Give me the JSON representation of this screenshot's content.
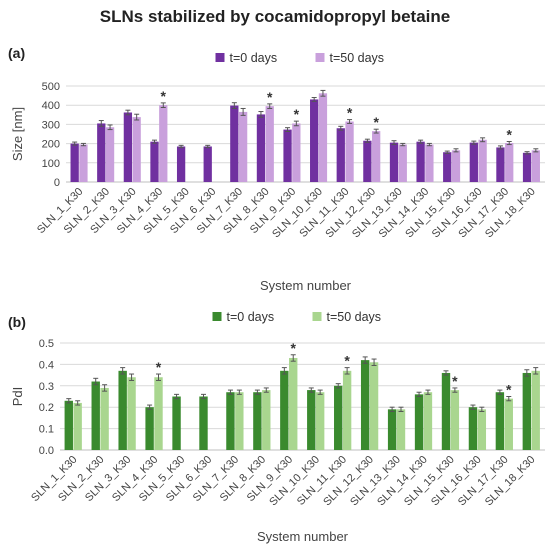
{
  "title": "SLNs stabilized by cocamidopropyl betaine",
  "chart_data": [
    {
      "type": "bar",
      "panel_label": "(a)",
      "categories": [
        "SLN_1_K30",
        "SLN_2_K30",
        "SLN_3_K30",
        "SLN_4_K30",
        "SLN_5_K30",
        "SLN_6_K30",
        "SLN_7_K30",
        "SLN_8_K30",
        "SLN_9_K30",
        "SLN_10_K30",
        "SLN_11_K30",
        "SLN_12_K30",
        "SLN_13_K30",
        "SLN_14_K30",
        "SLN_15_K30",
        "SLN_16_K30",
        "SLN_17_K30",
        "SLN_18_K30"
      ],
      "xlabel": "System number",
      "ylabel": "Size  [nm]",
      "ylim": [
        0,
        500
      ],
      "yticks": [
        0,
        100,
        200,
        300,
        400,
        500
      ],
      "grid": true,
      "legend": "top-center",
      "series": [
        {
          "name": "t=0 days",
          "color": "#7030a0",
          "values": [
            200,
            305,
            362,
            210,
            185,
            185,
            398,
            352,
            273,
            430,
            280,
            215,
            205,
            210,
            155,
            205,
            180,
            152
          ],
          "errors": [
            8,
            15,
            12,
            8,
            6,
            6,
            15,
            15,
            10,
            10,
            10,
            8,
            10,
            8,
            6,
            8,
            8,
            6
          ]
        },
        {
          "name": "t=50 days",
          "color": "#c9a0dc",
          "values": [
            195,
            285,
            338,
            400,
            null,
            null,
            365,
            395,
            305,
            462,
            315,
            265,
            195,
            195,
            165,
            220,
            203,
            165
          ],
          "errors": [
            6,
            12,
            15,
            12,
            null,
            null,
            18,
            12,
            12,
            15,
            10,
            10,
            6,
            6,
            8,
            10,
            8,
            8
          ]
        }
      ],
      "significance": [
        "SLN_4_K30",
        "SLN_8_K30",
        "SLN_9_K30",
        "SLN_11_K30",
        "SLN_12_K30",
        "SLN_17_K30"
      ],
      "significance_mark": "*"
    },
    {
      "type": "bar",
      "panel_label": "(b)",
      "categories": [
        "SLN_1_K30",
        "SLN_2_K30",
        "SLN_3_K30",
        "SLN_4_K30",
        "SLN_5_K30",
        "SLN_6_K30",
        "SLN_7_K30",
        "SLN_8_K30",
        "SLN_9_K30",
        "SLN_10_K30",
        "SLN_11_K30",
        "SLN_12_K30",
        "SLN_13_K30",
        "SLN_14_K30",
        "SLN_15_K30",
        "SLN_16_K30",
        "SLN_17_K30",
        "SLN_18_K30"
      ],
      "xlabel": "System number",
      "ylabel": "PdI",
      "ylim": [
        0,
        0.5
      ],
      "yticks": [
        0,
        0.1,
        0.2,
        0.3,
        0.4,
        0.5
      ],
      "grid": true,
      "legend": "top-center",
      "series": [
        {
          "name": "t=0 days",
          "color": "#3a8a2e",
          "values": [
            0.23,
            0.32,
            0.37,
            0.2,
            0.25,
            0.25,
            0.27,
            0.27,
            0.37,
            0.28,
            0.3,
            0.42,
            0.19,
            0.26,
            0.36,
            0.2,
            0.27,
            0.36
          ],
          "errors": [
            0.01,
            0.015,
            0.015,
            0.01,
            0.01,
            0.01,
            0.01,
            0.01,
            0.015,
            0.01,
            0.01,
            0.015,
            0.01,
            0.01,
            0.01,
            0.01,
            0.01,
            0.015
          ]
        },
        {
          "name": "t=50 days",
          "color": "#a9d68f",
          "values": [
            0.22,
            0.29,
            0.34,
            0.34,
            null,
            null,
            0.27,
            0.28,
            0.43,
            0.27,
            0.37,
            0.41,
            0.19,
            0.27,
            0.28,
            0.19,
            0.24,
            0.37
          ],
          "errors": [
            0.01,
            0.015,
            0.015,
            0.015,
            null,
            null,
            0.01,
            0.01,
            0.015,
            0.01,
            0.015,
            0.015,
            0.01,
            0.01,
            0.01,
            0.01,
            0.01,
            0.015
          ]
        }
      ],
      "significance": [
        "SLN_4_K30",
        "SLN_9_K30",
        "SLN_11_K30",
        "SLN_15_K30",
        "SLN_17_K30"
      ],
      "significance_mark": "*"
    }
  ]
}
